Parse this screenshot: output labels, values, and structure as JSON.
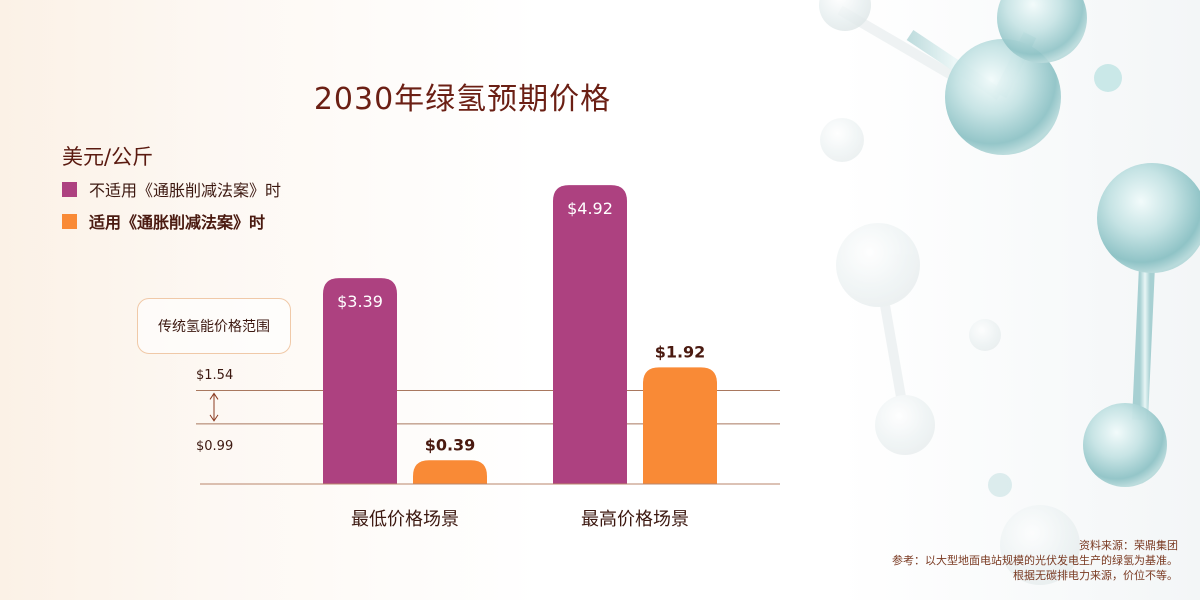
{
  "chart_data": {
    "type": "bar",
    "title": "2030年绿氢预期价格",
    "unit": "美元/公斤",
    "categories": [
      "最低价格场景",
      "最高价格场景"
    ],
    "series": [
      {
        "name": "不适用《通胀削减法案》时",
        "values": [
          3.39,
          4.92
        ],
        "labels": [
          "$3.39",
          "$4.92"
        ],
        "color": "#ad4180"
      },
      {
        "name": "适用《通胀削减法案》时",
        "values": [
          0.39,
          1.92
        ],
        "labels": [
          "$0.39",
          "$1.92"
        ],
        "color": "#f98a36"
      }
    ],
    "reference_range": {
      "label": "传统氢能价格范围",
      "low": 0.99,
      "high": 1.54,
      "low_label": "$0.99",
      "high_label": "$1.54"
    },
    "ylim": [
      0,
      5.4
    ],
    "grid": false,
    "legend_position": "top-left"
  },
  "colors": {
    "title": "#6b1f14",
    "axis": "#b9866b",
    "reference_line": "#a9785f"
  },
  "footer": {
    "source": "资料来源：荣鼎集团",
    "note_line1": "参考：以大型地面电站规模的光伏发电生产的绿氢为基准。",
    "note_line2": "根据无碳排电力来源，价位不等。"
  }
}
